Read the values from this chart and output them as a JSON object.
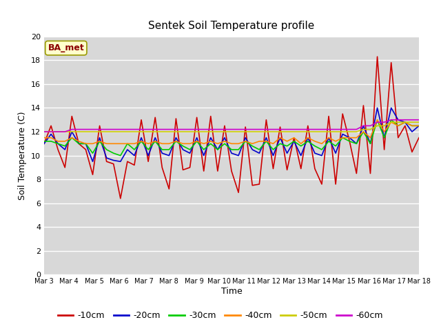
{
  "title": "Sentek Soil Temperature profile",
  "xlabel": "Time",
  "ylabel": "Soil Temperature (C)",
  "ylim": [
    0,
    20
  ],
  "bg_color": "#d8d8d8",
  "annotation_text": "BA_met",
  "annotation_color": "#8b0000",
  "annotation_bg": "#ffffcc",
  "tick_labels": [
    "Mar 3",
    "Mar 4",
    "Mar 5",
    "Mar 6",
    "Mar 7",
    "Mar 8",
    "Mar 9",
    "Mar 10",
    "Mar 11",
    "Mar 12",
    "Mar 13",
    "Mar 14",
    "Mar 15",
    "Mar 16",
    "Mar 17",
    "Mar 18"
  ],
  "series": {
    "-10cm": {
      "color": "#cc0000",
      "lw": 1.2,
      "values": [
        11.0,
        12.5,
        10.5,
        9.0,
        13.3,
        11.0,
        10.5,
        8.4,
        12.5,
        9.5,
        9.3,
        6.4,
        9.5,
        9.2,
        13.0,
        9.5,
        13.2,
        9.0,
        7.2,
        13.1,
        8.8,
        9.0,
        13.2,
        8.7,
        13.3,
        8.7,
        12.5,
        8.7,
        6.9,
        12.4,
        7.5,
        7.6,
        13.0,
        8.9,
        12.4,
        8.8,
        11.5,
        8.9,
        12.5,
        8.9,
        7.6,
        13.3,
        7.6,
        13.5,
        11.2,
        8.5,
        14.2,
        8.5,
        18.3,
        10.5,
        17.8,
        11.5,
        12.5,
        10.3,
        11.5
      ]
    },
    "-20cm": {
      "color": "#0000cc",
      "lw": 1.2,
      "values": [
        11.0,
        11.8,
        11.0,
        10.5,
        12.0,
        11.0,
        11.0,
        9.5,
        11.5,
        9.8,
        9.6,
        9.5,
        10.5,
        10.0,
        11.5,
        10.0,
        11.5,
        10.2,
        10.0,
        11.5,
        10.5,
        10.2,
        11.5,
        10.0,
        11.5,
        10.5,
        11.5,
        10.2,
        10.0,
        11.5,
        10.5,
        10.2,
        11.5,
        10.0,
        11.5,
        10.2,
        11.2,
        10.0,
        11.5,
        10.2,
        10.0,
        11.5,
        10.2,
        11.8,
        11.5,
        11.0,
        12.5,
        11.0,
        14.0,
        11.5,
        14.0,
        13.0,
        12.8,
        12.0,
        12.5
      ]
    },
    "-30cm": {
      "color": "#00cc00",
      "lw": 1.2,
      "values": [
        11.2,
        11.2,
        11.0,
        10.8,
        11.5,
        11.0,
        11.0,
        10.2,
        11.2,
        10.5,
        10.2,
        10.0,
        11.0,
        10.5,
        11.2,
        10.5,
        11.2,
        10.5,
        10.5,
        11.2,
        10.8,
        10.5,
        11.2,
        10.5,
        11.0,
        10.5,
        11.0,
        10.5,
        10.5,
        11.2,
        10.8,
        10.5,
        11.2,
        10.5,
        11.0,
        10.8,
        11.2,
        10.8,
        11.2,
        10.8,
        10.5,
        11.2,
        10.8,
        11.5,
        11.2,
        11.0,
        12.0,
        11.0,
        13.0,
        11.5,
        13.0,
        12.5,
        12.8,
        12.5,
        12.5
      ]
    },
    "-40cm": {
      "color": "#ff8800",
      "lw": 1.2,
      "values": [
        11.5,
        11.5,
        11.2,
        11.2,
        11.5,
        11.2,
        11.0,
        11.0,
        11.2,
        11.0,
        11.0,
        11.0,
        11.0,
        11.0,
        11.2,
        11.0,
        11.2,
        11.0,
        11.0,
        11.2,
        11.0,
        11.0,
        11.2,
        11.0,
        11.2,
        11.0,
        11.2,
        11.0,
        11.0,
        11.2,
        11.0,
        11.2,
        11.2,
        11.0,
        11.5,
        11.2,
        11.5,
        11.0,
        11.5,
        11.2,
        11.0,
        11.5,
        11.2,
        11.5,
        11.5,
        11.5,
        12.0,
        11.5,
        13.0,
        12.0,
        12.8,
        12.5,
        12.8,
        12.5,
        12.5
      ]
    },
    "-50cm": {
      "color": "#cccc00",
      "lw": 1.2,
      "values": [
        12.0,
        12.0,
        12.0,
        12.0,
        12.0,
        12.0,
        12.0,
        12.0,
        12.0,
        12.0,
        12.0,
        12.0,
        12.0,
        12.0,
        12.0,
        12.0,
        12.0,
        12.0,
        12.0,
        12.0,
        12.0,
        12.0,
        12.0,
        12.0,
        12.0,
        12.0,
        12.0,
        12.0,
        12.0,
        12.0,
        12.0,
        12.0,
        12.0,
        12.0,
        12.0,
        12.0,
        12.0,
        12.0,
        12.0,
        12.0,
        12.0,
        12.0,
        12.0,
        12.0,
        12.0,
        12.0,
        12.2,
        12.2,
        12.5,
        12.5,
        12.8,
        12.8,
        12.8,
        12.8,
        12.8
      ]
    },
    "-60cm": {
      "color": "#cc00cc",
      "lw": 1.2,
      "values": [
        12.0,
        12.0,
        12.0,
        12.0,
        12.2,
        12.2,
        12.2,
        12.2,
        12.2,
        12.2,
        12.2,
        12.2,
        12.2,
        12.2,
        12.2,
        12.2,
        12.2,
        12.2,
        12.2,
        12.2,
        12.2,
        12.2,
        12.2,
        12.2,
        12.2,
        12.2,
        12.2,
        12.2,
        12.2,
        12.2,
        12.2,
        12.2,
        12.2,
        12.2,
        12.2,
        12.2,
        12.2,
        12.2,
        12.2,
        12.2,
        12.2,
        12.2,
        12.2,
        12.2,
        12.2,
        12.2,
        12.5,
        12.5,
        12.8,
        12.8,
        13.0,
        13.0,
        13.0,
        13.0,
        13.0
      ]
    }
  }
}
